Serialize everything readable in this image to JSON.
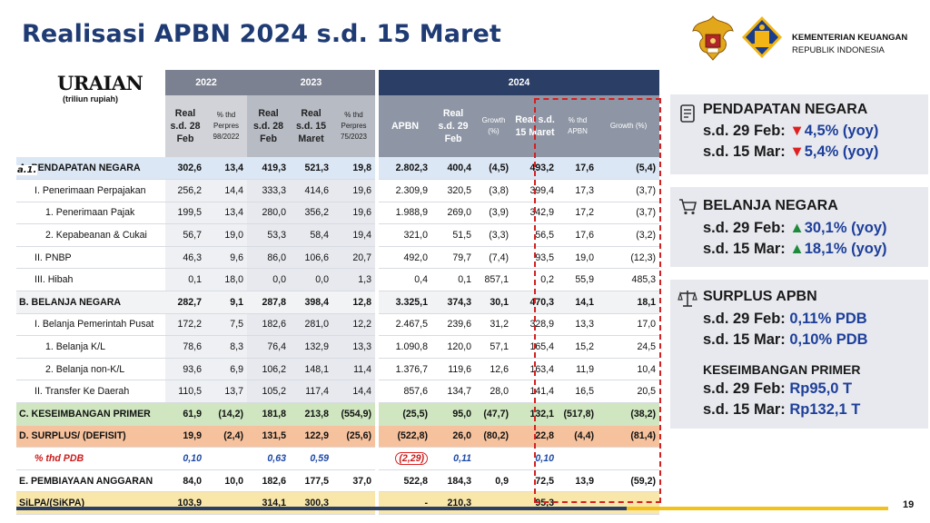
{
  "title": "Realisasi APBN 2024 s.d. 15 Maret",
  "ministry": {
    "line1": "KEMENTERIAN KEUANGAN",
    "line2": "REPUBLIK INDONESIA"
  },
  "table": {
    "uraian": "URAIAN",
    "unit": "(triliun rupiah)",
    "years": [
      "2022",
      "2023",
      "2024"
    ],
    "subheaders": {
      "y2022": [
        "Real s.d. 28 Feb",
        "% thd Perpres 98/2022"
      ],
      "y2023": [
        "Real s.d. 28 Feb",
        "Real s.d. 15 Maret",
        "% thd Perpres 75/2023"
      ],
      "y2024": [
        "APBN",
        "Real s.d. 29 Feb",
        "Growth (%)",
        "Real s.d. 15 Maret",
        "% thd APBN",
        "Growth (%)"
      ]
    },
    "a1_label": "a.1.",
    "rows": [
      {
        "label": "A.   PENDAPATAN NEGARA",
        "cls": "row-a",
        "indent": "",
        "v": [
          "302,6",
          "13,4",
          "419,3",
          "521,3",
          "19,8",
          "2.802,3",
          "400,4",
          "(4,5)",
          "493,2",
          "17,6",
          "(5,4)"
        ]
      },
      {
        "label": "I.   Penerimaan Perpajakan",
        "cls": "",
        "indent": "i1",
        "v": [
          "256,2",
          "14,4",
          "333,3",
          "414,6",
          "19,6",
          "2.309,9",
          "320,5",
          "(3,8)",
          "399,4",
          "17,3",
          "(3,7)"
        ]
      },
      {
        "label": "1.   Penerimaan Pajak",
        "cls": "",
        "indent": "i2",
        "v": [
          "199,5",
          "13,4",
          "280,0",
          "356,2",
          "19,6",
          "1.988,9",
          "269,0",
          "(3,9)",
          "342,9",
          "17,2",
          "(3,7)"
        ]
      },
      {
        "label": "2.   Kepabeanan & Cukai",
        "cls": "",
        "indent": "i2",
        "v": [
          "56,7",
          "19,0",
          "53,3",
          "58,4",
          "19,4",
          "321,0",
          "51,5",
          "(3,3)",
          "56,5",
          "17,6",
          "(3,2)"
        ]
      },
      {
        "label": "II.  PNBP",
        "cls": "",
        "indent": "i1",
        "v": [
          "46,3",
          "9,6",
          "86,0",
          "106,6",
          "20,7",
          "492,0",
          "79,7",
          "(7,4)",
          "93,5",
          "19,0",
          "(12,3)"
        ]
      },
      {
        "label": "III. Hibah",
        "cls": "",
        "indent": "i1",
        "v": [
          "0,1",
          "18,0",
          "0,0",
          "0,0",
          "1,3",
          "0,4",
          "0,1",
          "857,1",
          "0,2",
          "55,9",
          "485,3"
        ]
      },
      {
        "label": "B.   BELANJA NEGARA",
        "cls": "row-b",
        "indent": "",
        "v": [
          "282,7",
          "9,1",
          "287,8",
          "398,4",
          "12,8",
          "3.325,1",
          "374,3",
          "30,1",
          "470,3",
          "14,1",
          "18,1"
        ]
      },
      {
        "label": "I.   Belanja Pemerintah Pusat",
        "cls": "",
        "indent": "i1",
        "v": [
          "172,2",
          "7,5",
          "182,6",
          "281,0",
          "12,2",
          "2.467,5",
          "239,6",
          "31,2",
          "328,9",
          "13,3",
          "17,0"
        ]
      },
      {
        "label": "1.   Belanja K/L",
        "cls": "",
        "indent": "i2",
        "v": [
          "78,6",
          "8,3",
          "76,4",
          "132,9",
          "13,3",
          "1.090,8",
          "120,0",
          "57,1",
          "165,4",
          "15,2",
          "24,5"
        ]
      },
      {
        "label": "2.   Belanja non-K/L",
        "cls": "",
        "indent": "i2",
        "v": [
          "93,6",
          "6,9",
          "106,2",
          "148,1",
          "11,4",
          "1.376,7",
          "119,6",
          "12,6",
          "163,4",
          "11,9",
          "10,4"
        ]
      },
      {
        "label": "II.  Transfer Ke Daerah",
        "cls": "",
        "indent": "i1",
        "v": [
          "110,5",
          "13,7",
          "105,2",
          "117,4",
          "14,4",
          "857,6",
          "134,7",
          "28,0",
          "141,4",
          "16,5",
          "20,5"
        ]
      },
      {
        "label": "C.   KESEIMBANGAN PRIMER",
        "cls": "row-c",
        "indent": "",
        "v": [
          "61,9",
          "(14,2)",
          "181,8",
          "213,8",
          "(554,9)",
          "(25,5)",
          "95,0",
          "(47,7)",
          "132,1",
          "(517,8)",
          "(38,2)"
        ]
      },
      {
        "label": "D.   SURPLUS/ (DEFISIT)",
        "cls": "row-d",
        "indent": "",
        "v": [
          "19,9",
          "(2,4)",
          "131,5",
          "122,9",
          "(25,6)",
          "(522,8)",
          "26,0",
          "(80,2)",
          "22,8",
          "(4,4)",
          "(81,4)"
        ]
      },
      {
        "label": "% thd PDB",
        "cls": "row-pdb",
        "indent": "i1",
        "v": [
          "0,10",
          "",
          "0,63",
          "0,59",
          "",
          "(2,29)",
          "0,11",
          "",
          "0,10",
          "",
          ""
        ]
      },
      {
        "label": "E.   PEMBIAYAAN ANGGARAN",
        "cls": "row-e",
        "indent": "",
        "v": [
          "84,0",
          "10,0",
          "182,6",
          "177,5",
          "37,0",
          "522,8",
          "184,3",
          "0,9",
          "72,5",
          "13,9",
          "(59,2)"
        ]
      },
      {
        "label": "SiLPA/(SiKPA)",
        "cls": "row-silpa",
        "indent": "",
        "v": [
          "103,9",
          "",
          "314,1",
          "300,3",
          "",
          "-",
          "210,3",
          "",
          "95,3",
          "",
          ""
        ]
      }
    ]
  },
  "cards": {
    "pendapatan": {
      "head": "PENDAPATAN NEGARA",
      "l1_prefix": "s.d. 29 Feb: ",
      "l1_val": "▼4,5% (yoy)",
      "l2_prefix": "s.d. 15 Mar: ",
      "l2_val": "▼5,4% (yoy)",
      "icon": "document-icon"
    },
    "belanja": {
      "head": "BELANJA NEGARA",
      "l1_prefix": "s.d. 29 Feb: ",
      "l1_val": "▲30,1% (yoy)",
      "l2_prefix": "s.d. 15 Mar: ",
      "l2_val": "▲18,1% (yoy)",
      "icon": "cart-icon"
    },
    "surplus": {
      "head": "SURPLUS APBN",
      "l1_prefix": "s.d. 29 Feb: ",
      "l1_val": "0,11% PDB",
      "l2_prefix": "s.d. 15 Mar: ",
      "l2_val": "0,10% PDB",
      "icon": "scale-icon",
      "head2": "KESEIMBANGAN PRIMER",
      "l3_prefix": "s.d. 29 Feb: ",
      "l3_val": "Rp95,0 T",
      "l4_prefix": "s.d. 15 Mar: ",
      "l4_val": "Rp132,1 T"
    }
  },
  "page_number": "19",
  "colors": {
    "title": "#1f3b73",
    "down": "#e02020",
    "up": "#1f8a3b",
    "accent_blue": "#1e3f9a"
  }
}
